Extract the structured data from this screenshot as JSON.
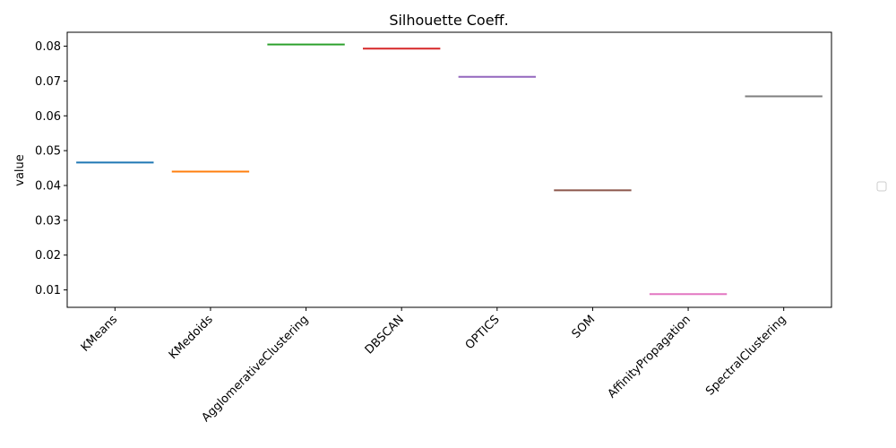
{
  "chart_data": {
    "type": "bar",
    "title": "Silhouette Coeff.",
    "xlabel": "",
    "ylabel": "value",
    "ylim": [
      0.005,
      0.084
    ],
    "yticks": [
      0.01,
      0.02,
      0.03,
      0.04,
      0.05,
      0.06,
      0.07,
      0.08
    ],
    "ytick_labels": [
      "0.01",
      "0.02",
      "0.03",
      "0.04",
      "0.05",
      "0.06",
      "0.07",
      "0.08"
    ],
    "categories": [
      "KMeans",
      "KMedoids",
      "AgglomerativeClustering",
      "DBSCAN",
      "OPTICS",
      "SOM",
      "AffinityPropagation",
      "SpectralClustering"
    ],
    "values": [
      0.0466,
      0.044,
      0.0805,
      0.0793,
      0.0712,
      0.0386,
      0.0088,
      0.0656
    ],
    "colors": [
      "#1f77b4",
      "#ff7f0e",
      "#2ca02c",
      "#d62728",
      "#9467bd",
      "#8c564b",
      "#e377c2",
      "#7f7f7f"
    ],
    "legend": "empty box, right side outside plot",
    "grid": false
  }
}
